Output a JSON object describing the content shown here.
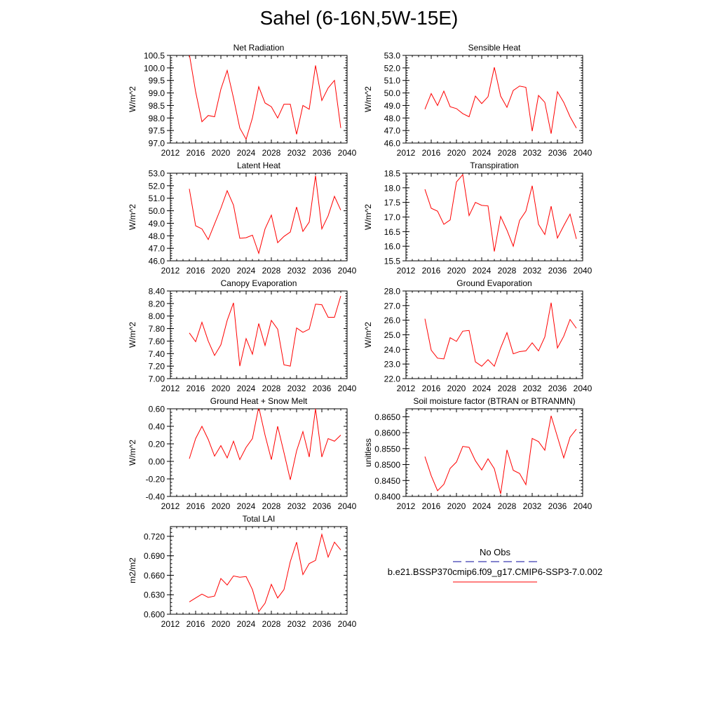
{
  "figure": {
    "title": "Sahel (6-16N,5W-15E)"
  },
  "legend": {
    "obs_label": "No Obs",
    "obs_color": "#3b3bb0",
    "model_label": "b.e21.BSSP370cmip6.f09_g17.CMIP6-SSP3-7.0.002",
    "model_color": "#ff0000"
  },
  "chart_data": [
    {
      "type": "line",
      "title": "Net Radiation",
      "ylabel": "W/m^2",
      "xlim": [
        2012,
        2040
      ],
      "ylim": [
        97.0,
        100.5
      ],
      "xticks": [
        "2012",
        "2016",
        "2020",
        "2024",
        "2028",
        "2032",
        "2036",
        "2040"
      ],
      "yticks": [
        "97.0",
        "97.5",
        "98.0",
        "98.5",
        "99.0",
        "99.5",
        "100.0",
        "100.5"
      ],
      "x": [
        2015,
        2016,
        2017,
        2018,
        2019,
        2020,
        2021,
        2022,
        2023,
        2024,
        2025,
        2026,
        2027,
        2028,
        2029,
        2030,
        2031,
        2032,
        2033,
        2034,
        2035,
        2036,
        2037,
        2038,
        2039
      ],
      "series": [
        {
          "color": "#ff0000",
          "values": [
            100.55,
            99.05,
            97.85,
            98.1,
            98.05,
            99.15,
            99.9,
            98.8,
            97.6,
            97.15,
            98.0,
            99.25,
            98.6,
            98.45,
            98.0,
            98.55,
            98.55,
            97.35,
            98.5,
            98.35,
            100.1,
            98.7,
            99.2,
            99.5,
            97.6
          ]
        }
      ]
    },
    {
      "type": "line",
      "title": "Sensible Heat",
      "ylabel": "W/m^2",
      "xlim": [
        2012,
        2040
      ],
      "ylim": [
        46.0,
        53.0
      ],
      "xticks": [
        "2012",
        "2016",
        "2020",
        "2024",
        "2028",
        "2032",
        "2036",
        "2040"
      ],
      "yticks": [
        "46.0",
        "47.0",
        "48.0",
        "49.0",
        "50.0",
        "51.0",
        "52.0",
        "53.0"
      ],
      "x": [
        2015,
        2016,
        2017,
        2018,
        2019,
        2020,
        2021,
        2022,
        2023,
        2024,
        2025,
        2026,
        2027,
        2028,
        2029,
        2030,
        2031,
        2032,
        2033,
        2034,
        2035,
        2036,
        2037,
        2038,
        2039
      ],
      "series": [
        {
          "color": "#ff0000",
          "values": [
            48.7,
            49.95,
            49.0,
            50.15,
            48.9,
            48.75,
            48.35,
            48.1,
            49.75,
            49.15,
            49.7,
            52.05,
            49.75,
            48.85,
            50.2,
            50.55,
            50.45,
            46.95,
            49.8,
            49.25,
            46.75,
            50.1,
            49.25,
            48.1,
            47.2
          ]
        }
      ]
    },
    {
      "type": "line",
      "title": "Latent Heat",
      "ylabel": "W/m^2",
      "xlim": [
        2012,
        2040
      ],
      "ylim": [
        46.0,
        53.0
      ],
      "xticks": [
        "2012",
        "2016",
        "2020",
        "2024",
        "2028",
        "2032",
        "2036",
        "2040"
      ],
      "yticks": [
        "46.0",
        "47.0",
        "48.0",
        "49.0",
        "50.0",
        "51.0",
        "52.0",
        "53.0"
      ],
      "x": [
        2015,
        2016,
        2017,
        2018,
        2019,
        2020,
        2021,
        2022,
        2023,
        2024,
        2025,
        2026,
        2027,
        2028,
        2029,
        2030,
        2031,
        2032,
        2033,
        2034,
        2035,
        2036,
        2037,
        2038,
        2039
      ],
      "series": [
        {
          "color": "#ff0000",
          "values": [
            51.75,
            48.8,
            48.55,
            47.7,
            48.95,
            50.2,
            51.6,
            50.45,
            47.8,
            47.85,
            48.05,
            46.6,
            48.55,
            49.65,
            47.45,
            47.95,
            48.3,
            50.3,
            48.35,
            49.1,
            52.8,
            48.55,
            49.6,
            51.15,
            50.05
          ]
        }
      ]
    },
    {
      "type": "line",
      "title": "Transpiration",
      "ylabel": "W/m^2",
      "xlim": [
        2012,
        2040
      ],
      "ylim": [
        15.5,
        18.5
      ],
      "xticks": [
        "2012",
        "2016",
        "2020",
        "2024",
        "2028",
        "2032",
        "2036",
        "2040"
      ],
      "yticks": [
        "15.5",
        "16.0",
        "16.5",
        "17.0",
        "17.5",
        "18.0",
        "18.5"
      ],
      "x": [
        2015,
        2016,
        2017,
        2018,
        2019,
        2020,
        2021,
        2022,
        2023,
        2024,
        2025,
        2026,
        2027,
        2028,
        2029,
        2030,
        2031,
        2032,
        2033,
        2034,
        2035,
        2036,
        2037,
        2038,
        2039
      ],
      "series": [
        {
          "color": "#ff0000",
          "values": [
            17.95,
            17.3,
            17.2,
            16.75,
            16.9,
            18.2,
            18.45,
            17.05,
            17.5,
            17.4,
            17.38,
            15.82,
            17.02,
            16.55,
            16.0,
            16.88,
            17.2,
            18.07,
            16.75,
            16.4,
            17.37,
            16.28,
            16.7,
            17.1,
            16.25
          ]
        }
      ]
    },
    {
      "type": "line",
      "title": "Canopy Evaporation",
      "ylabel": "W/m^2",
      "xlim": [
        2012,
        2040
      ],
      "ylim": [
        7.0,
        8.4
      ],
      "xticks": [
        "2012",
        "2016",
        "2020",
        "2024",
        "2028",
        "2032",
        "2036",
        "2040"
      ],
      "yticks": [
        "7.00",
        "7.20",
        "7.40",
        "7.60",
        "7.80",
        "8.00",
        "8.20",
        "8.40"
      ],
      "x": [
        2015,
        2016,
        2017,
        2018,
        2019,
        2020,
        2021,
        2022,
        2023,
        2024,
        2025,
        2026,
        2027,
        2028,
        2029,
        2030,
        2031,
        2032,
        2033,
        2034,
        2035,
        2036,
        2037,
        2038,
        2039
      ],
      "series": [
        {
          "color": "#ff0000",
          "values": [
            7.73,
            7.59,
            7.9,
            7.6,
            7.37,
            7.54,
            7.93,
            8.21,
            7.2,
            7.64,
            7.39,
            7.88,
            7.53,
            7.93,
            7.79,
            7.22,
            7.2,
            7.81,
            7.74,
            7.79,
            8.19,
            8.18,
            7.98,
            7.98,
            8.32
          ]
        }
      ]
    },
    {
      "type": "line",
      "title": "Ground Evaporation",
      "ylabel": "W/m^2",
      "xlim": [
        2012,
        2040
      ],
      "ylim": [
        22.0,
        28.0
      ],
      "xticks": [
        "2012",
        "2016",
        "2020",
        "2024",
        "2028",
        "2032",
        "2036",
        "2040"
      ],
      "yticks": [
        "22.0",
        "23.0",
        "24.0",
        "25.0",
        "26.0",
        "27.0",
        "28.0"
      ],
      "x": [
        2015,
        2016,
        2017,
        2018,
        2019,
        2020,
        2021,
        2022,
        2023,
        2024,
        2025,
        2026,
        2027,
        2028,
        2029,
        2030,
        2031,
        2032,
        2033,
        2034,
        2035,
        2036,
        2037,
        2038,
        2039
      ],
      "series": [
        {
          "color": "#ff0000",
          "values": [
            26.1,
            23.95,
            23.4,
            23.35,
            24.8,
            24.55,
            25.25,
            25.3,
            23.15,
            22.85,
            23.3,
            22.85,
            24.1,
            25.15,
            23.7,
            23.85,
            23.9,
            24.45,
            23.9,
            24.85,
            27.2,
            24.1,
            24.9,
            26.05,
            25.45
          ]
        }
      ]
    },
    {
      "type": "line",
      "title": "Ground Heat + Snow Melt",
      "ylabel": "W/m^2",
      "xlim": [
        2012,
        2040
      ],
      "ylim": [
        -0.4,
        0.6
      ],
      "xticks": [
        "2012",
        "2016",
        "2020",
        "2024",
        "2028",
        "2032",
        "2036",
        "2040"
      ],
      "yticks": [
        "-0.40",
        "-0.20",
        "0.00",
        "0.20",
        "0.40",
        "0.60"
      ],
      "x": [
        2015,
        2016,
        2017,
        2018,
        2019,
        2020,
        2021,
        2022,
        2023,
        2024,
        2025,
        2026,
        2027,
        2028,
        2029,
        2030,
        2031,
        2032,
        2033,
        2034,
        2035,
        2036,
        2037,
        2038,
        2039
      ],
      "series": [
        {
          "color": "#ff0000",
          "values": [
            0.03,
            0.26,
            0.4,
            0.25,
            0.06,
            0.18,
            0.04,
            0.23,
            0.02,
            0.16,
            0.26,
            0.62,
            0.3,
            0.02,
            0.4,
            0.1,
            -0.21,
            0.12,
            0.34,
            0.05,
            0.6,
            0.05,
            0.26,
            0.23,
            0.3
          ]
        }
      ]
    },
    {
      "type": "line",
      "title": "Soil moisture factor (BTRAN or BTRANMN)",
      "ylabel": "unitless",
      "xlim": [
        2012,
        2040
      ],
      "ylim": [
        0.84,
        0.8675
      ],
      "xticks": [
        "2012",
        "2016",
        "2020",
        "2024",
        "2028",
        "2032",
        "2036",
        "2040"
      ],
      "yticks": [
        "0.8400",
        "0.8450",
        "0.8500",
        "0.8550",
        "0.8600",
        "0.8650"
      ],
      "x": [
        2015,
        2016,
        2017,
        2018,
        2019,
        2020,
        2021,
        2022,
        2023,
        2024,
        2025,
        2026,
        2027,
        2028,
        2029,
        2030,
        2031,
        2032,
        2033,
        2034,
        2035,
        2036,
        2037,
        2038,
        2039
      ],
      "series": [
        {
          "color": "#ff0000",
          "values": [
            0.8525,
            0.8465,
            0.8418,
            0.8438,
            0.8488,
            0.8508,
            0.8557,
            0.8554,
            0.8512,
            0.8483,
            0.8518,
            0.8487,
            0.8408,
            0.8546,
            0.8482,
            0.8472,
            0.8437,
            0.8582,
            0.8572,
            0.8545,
            0.8653,
            0.8587,
            0.8521,
            0.8586,
            0.8611
          ]
        }
      ]
    },
    {
      "type": "line",
      "title": "Total LAI",
      "ylabel": "m2/m2",
      "xlim": [
        2012,
        2040
      ],
      "ylim": [
        0.6,
        0.735
      ],
      "xticks": [
        "2012",
        "2016",
        "2020",
        "2024",
        "2028",
        "2032",
        "2036",
        "2040"
      ],
      "yticks": [
        "0.600",
        "0.630",
        "0.660",
        "0.690",
        "0.720"
      ],
      "x": [
        2015,
        2016,
        2017,
        2018,
        2019,
        2020,
        2021,
        2022,
        2023,
        2024,
        2025,
        2026,
        2027,
        2028,
        2029,
        2030,
        2031,
        2032,
        2033,
        2034,
        2035,
        2036,
        2037,
        2038,
        2039
      ],
      "series": [
        {
          "color": "#ff0000",
          "values": [
            0.619,
            0.625,
            0.631,
            0.626,
            0.628,
            0.655,
            0.645,
            0.659,
            0.657,
            0.658,
            0.638,
            0.604,
            0.617,
            0.646,
            0.625,
            0.638,
            0.681,
            0.711,
            0.661,
            0.678,
            0.683,
            0.723,
            0.688,
            0.711,
            0.699
          ]
        }
      ]
    }
  ]
}
